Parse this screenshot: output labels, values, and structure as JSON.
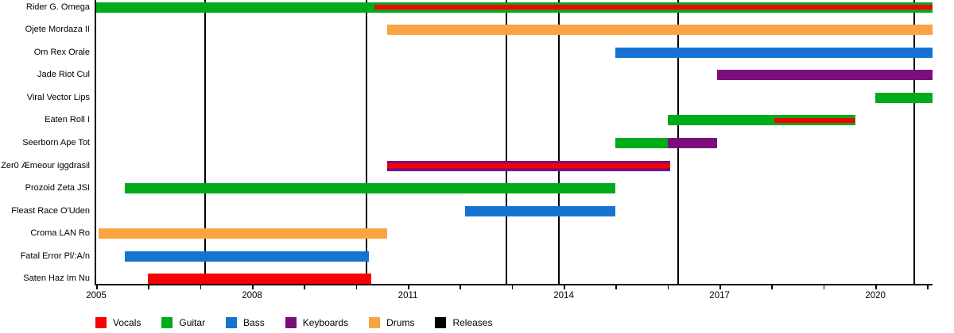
{
  "chart_data": {
    "type": "timeline",
    "title": "",
    "x_axis": {
      "min": 2005,
      "max": 2021.1,
      "tick_interval": 1,
      "labeled_years": [
        2005,
        2008,
        2011,
        2014,
        2017,
        2020
      ],
      "labels": [
        "2005",
        "2008",
        "2011",
        "2014",
        "2017",
        "2020"
      ]
    },
    "instrument_colors": {
      "Vocals": "#f60000",
      "Guitar": "#00ab1c",
      "Bass": "#1673d1",
      "Keyboards": "#7c0d7c",
      "Drums": "#f9a341",
      "Releases": "#000000"
    },
    "members": [
      {
        "name": "Rider G. Omega",
        "bars": [
          {
            "instrument": "Guitar",
            "start": 2005.0,
            "end": 2021.1
          }
        ],
        "overlays": [
          {
            "instrument": "Vocals",
            "start": 2010.35,
            "end": 2021.1
          }
        ]
      },
      {
        "name": "Ojete Mordaza II",
        "bars": [
          {
            "instrument": "Drums",
            "start": 2010.6,
            "end": 2021.1
          }
        ],
        "overlays": []
      },
      {
        "name": "Om Rex Orale",
        "bars": [
          {
            "instrument": "Bass",
            "start": 2015.0,
            "end": 2021.1
          }
        ],
        "overlays": []
      },
      {
        "name": "Jade Riot Cul",
        "bars": [
          {
            "instrument": "Keyboards",
            "start": 2016.95,
            "end": 2021.1
          }
        ],
        "overlays": []
      },
      {
        "name": "Viral Vector Lips",
        "bars": [
          {
            "instrument": "Guitar",
            "start": 2020.0,
            "end": 2021.1
          }
        ],
        "overlays": []
      },
      {
        "name": "Eaten Roll I",
        "bars": [
          {
            "instrument": "Guitar",
            "start": 2016.0,
            "end": 2019.62
          }
        ],
        "overlays": [
          {
            "instrument": "Vocals",
            "start": 2018.05,
            "end": 2019.6
          }
        ]
      },
      {
        "name": "Seerborn Ape Tot",
        "bars": [
          {
            "instrument": "Guitar",
            "start": 2015.0,
            "end": 2016.0
          },
          {
            "instrument": "Keyboards",
            "start": 2016.0,
            "end": 2016.95
          }
        ],
        "overlays": []
      },
      {
        "name": "Zer0 Æmeour iggdrasil",
        "bars": [
          {
            "instrument": "Keyboards",
            "start": 2010.6,
            "end": 2016.05
          }
        ],
        "overlays": [
          {
            "instrument": "Vocals",
            "start": 2010.6,
            "end": 2016.05
          }
        ]
      },
      {
        "name": "Prozoid Zeta JSI",
        "bars": [
          {
            "instrument": "Guitar",
            "start": 2005.55,
            "end": 2015.0
          }
        ],
        "overlays": []
      },
      {
        "name": "Fleast Race O'Uden",
        "bars": [
          {
            "instrument": "Bass",
            "start": 2012.1,
            "end": 2015.0
          }
        ],
        "overlays": []
      },
      {
        "name": "Croma LAN Ro",
        "bars": [
          {
            "instrument": "Drums",
            "start": 2005.05,
            "end": 2010.6
          }
        ],
        "overlays": []
      },
      {
        "name": "Fatal Error Pl/:A/n",
        "bars": [
          {
            "instrument": "Bass",
            "start": 2005.55,
            "end": 2010.25
          }
        ],
        "overlays": []
      },
      {
        "name": "Saten Haz Im Nu",
        "bars": [
          {
            "instrument": "Vocals",
            "start": 2006.0,
            "end": 2010.3
          }
        ],
        "overlays": []
      }
    ],
    "releases": [
      2007.1,
      2010.2,
      2012.9,
      2013.9,
      2016.2,
      2020.75
    ],
    "legend": [
      {
        "label": "Vocals",
        "color": "#f60000"
      },
      {
        "label": "Guitar",
        "color": "#00ab1c"
      },
      {
        "label": "Bass",
        "color": "#1673d1"
      },
      {
        "label": "Keyboards",
        "color": "#7c0d7c"
      },
      {
        "label": "Drums",
        "color": "#f9a341"
      },
      {
        "label": "Releases",
        "color": "#000000"
      }
    ]
  }
}
